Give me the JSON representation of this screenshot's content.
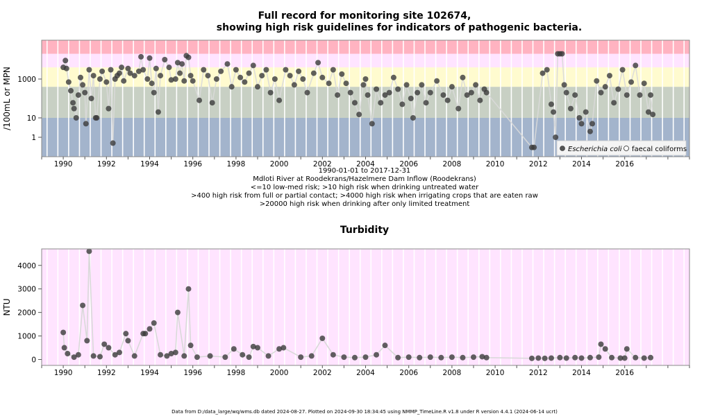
{
  "chart_data": [
    {
      "type": "scatter",
      "title_line1": "Full record for monitoring site 102674,",
      "title_line2": "showing high risk guidelines for indicators of pathogenic bacteria.",
      "ylabel": "/100mL or MPN",
      "yscale": "log",
      "ylim": [
        0.1,
        100000
      ],
      "yticks": [
        {
          "value": 1,
          "label": "1"
        },
        {
          "value": 10,
          "label": "10"
        },
        {
          "value": 1000,
          "label": "1000"
        }
      ],
      "xlim": [
        1989.0,
        2019.0
      ],
      "xtick_years": [
        1990,
        1992,
        1994,
        1996,
        1998,
        2000,
        2002,
        2004,
        2006,
        2008,
        2010,
        2012,
        2014,
        2016
      ],
      "date_range": "1990-01-01 to 2017-12-31",
      "site_name": "Mdloti River at Roodekrans/Hazelmere Dam Inflow (Roodekrans)",
      "risk_notes": [
        "<=10 low-med risk; >10 high risk when drinking untreated water",
        ">400 high risk from full or partial contact; >4000 high risk when irrigating crops that are eaten raw",
        ">20000 high risk when drinking after only limited treatment"
      ],
      "risk_bands": [
        {
          "from": 0.1,
          "to": 10,
          "color": "#a3b4cc"
        },
        {
          "from": 10,
          "to": 400,
          "color": "#c8d0c4"
        },
        {
          "from": 400,
          "to": 4000,
          "color": "#fffbcf"
        },
        {
          "from": 4000,
          "to": 20000,
          "color": "#ffe4ff"
        },
        {
          "from": 20000,
          "to": 100000,
          "color": "#ffb3c1"
        }
      ],
      "legend": {
        "position": "bottom-right",
        "entries": [
          "Escherichia coli",
          "faecal coliforms"
        ]
      },
      "series": [
        {
          "name": "Escherichia coli",
          "color": "#3b3b3b",
          "points": [
            [
              1990.0,
              4000
            ],
            [
              1990.1,
              9000
            ],
            [
              1990.15,
              3500
            ],
            [
              1990.25,
              700
            ],
            [
              1990.35,
              250
            ],
            [
              1990.45,
              60
            ],
            [
              1990.5,
              30
            ],
            [
              1990.6,
              10
            ],
            [
              1990.7,
              150
            ],
            [
              1990.8,
              1200
            ],
            [
              1990.9,
              500
            ],
            [
              1991.0,
              200
            ],
            [
              1991.05,
              5
            ],
            [
              1991.2,
              3000
            ],
            [
              1991.3,
              100
            ],
            [
              1991.4,
              1500
            ],
            [
              1991.5,
              10
            ],
            [
              1991.55,
              10
            ],
            [
              1991.7,
              1000
            ],
            [
              1991.8,
              2500
            ],
            [
              1992.0,
              700
            ],
            [
              1992.1,
              30
            ],
            [
              1992.2,
              3000
            ],
            [
              1992.3,
              0.5
            ],
            [
              1992.4,
              1000
            ],
            [
              1992.5,
              1500
            ],
            [
              1992.6,
              2000
            ],
            [
              1992.7,
              4000
            ],
            [
              1992.8,
              800
            ],
            [
              1993.0,
              3500
            ],
            [
              1993.1,
              2000
            ],
            [
              1993.3,
              1500
            ],
            [
              1993.5,
              2500
            ],
            [
              1993.6,
              14000
            ],
            [
              1993.7,
              3000
            ],
            [
              1993.9,
              1000
            ],
            [
              1994.0,
              12000
            ],
            [
              1994.1,
              600
            ],
            [
              1994.2,
              200
            ],
            [
              1994.3,
              3500
            ],
            [
              1994.4,
              20
            ],
            [
              1994.5,
              1500
            ],
            [
              1994.7,
              10000
            ],
            [
              1994.9,
              4000
            ],
            [
              1995.0,
              900
            ],
            [
              1995.2,
              1000
            ],
            [
              1995.3,
              7000
            ],
            [
              1995.4,
              2000
            ],
            [
              1995.5,
              6000
            ],
            [
              1995.6,
              800
            ],
            [
              1995.7,
              16000
            ],
            [
              1995.8,
              13000
            ],
            [
              1995.9,
              1500
            ],
            [
              1996.0,
              800
            ],
            [
              1996.3,
              80
            ],
            [
              1996.5,
              3000
            ],
            [
              1996.7,
              1500
            ],
            [
              1996.9,
              60
            ],
            [
              1997.1,
              1000
            ],
            [
              1997.3,
              2500
            ],
            [
              1997.6,
              6000
            ],
            [
              1997.8,
              400
            ],
            [
              1998.0,
              3000
            ],
            [
              1998.2,
              1200
            ],
            [
              1998.4,
              700
            ],
            [
              1998.6,
              2000
            ],
            [
              1998.8,
              5000
            ],
            [
              1999.0,
              400
            ],
            [
              1999.2,
              1500
            ],
            [
              1999.4,
              3000
            ],
            [
              1999.6,
              200
            ],
            [
              1999.8,
              1000
            ],
            [
              2000.0,
              80
            ],
            [
              2000.3,
              3000
            ],
            [
              2000.5,
              1500
            ],
            [
              2000.7,
              500
            ],
            [
              2000.9,
              2500
            ],
            [
              2001.1,
              1000
            ],
            [
              2001.3,
              200
            ],
            [
              2001.6,
              2000
            ],
            [
              2001.8,
              7000
            ],
            [
              2002.0,
              1200
            ],
            [
              2002.3,
              600
            ],
            [
              2002.5,
              3000
            ],
            [
              2002.7,
              150
            ],
            [
              2002.9,
              1800
            ],
            [
              2003.1,
              600
            ],
            [
              2003.3,
              200
            ],
            [
              2003.5,
              60
            ],
            [
              2003.7,
              15
            ],
            [
              2003.9,
              500
            ],
            [
              2004.0,
              1000
            ],
            [
              2004.1,
              150
            ],
            [
              2004.3,
              5
            ],
            [
              2004.5,
              300
            ],
            [
              2004.7,
              60
            ],
            [
              2004.9,
              150
            ],
            [
              2005.1,
              200
            ],
            [
              2005.3,
              1200
            ],
            [
              2005.5,
              300
            ],
            [
              2005.7,
              50
            ],
            [
              2005.9,
              500
            ],
            [
              2006.1,
              100
            ],
            [
              2006.2,
              10
            ],
            [
              2006.4,
              200
            ],
            [
              2006.6,
              500
            ],
            [
              2006.8,
              60
            ],
            [
              2007.0,
              200
            ],
            [
              2007.3,
              800
            ],
            [
              2007.6,
              150
            ],
            [
              2007.8,
              80
            ],
            [
              2008.0,
              400
            ],
            [
              2008.3,
              30
            ],
            [
              2008.5,
              1200
            ],
            [
              2008.7,
              150
            ],
            [
              2008.9,
              200
            ],
            [
              2009.1,
              500
            ],
            [
              2009.3,
              80
            ],
            [
              2009.5,
              300
            ],
            [
              2009.6,
              200
            ],
            [
              2011.7,
              0.3
            ],
            [
              2011.8,
              0.3
            ],
            [
              2012.2,
              2000
            ],
            [
              2012.4,
              3000
            ],
            [
              2012.6,
              50
            ],
            [
              2012.7,
              20
            ],
            [
              2012.8,
              1
            ],
            [
              2012.9,
              20000
            ],
            [
              2013.0,
              20000
            ],
            [
              2013.1,
              20000
            ],
            [
              2013.2,
              500
            ],
            [
              2013.3,
              200
            ],
            [
              2013.5,
              30
            ],
            [
              2013.7,
              150
            ],
            [
              2013.9,
              10
            ],
            [
              2014.0,
              5
            ],
            [
              2014.2,
              20
            ],
            [
              2014.4,
              2
            ],
            [
              2014.5,
              5
            ],
            [
              2014.7,
              800
            ],
            [
              2014.9,
              200
            ],
            [
              2015.1,
              400
            ],
            [
              2015.3,
              1500
            ],
            [
              2015.5,
              60
            ],
            [
              2015.7,
              300
            ],
            [
              2015.9,
              3000
            ],
            [
              2016.1,
              150
            ],
            [
              2016.3,
              700
            ],
            [
              2016.5,
              5000
            ],
            [
              2016.7,
              150
            ],
            [
              2016.9,
              600
            ],
            [
              2017.1,
              20
            ],
            [
              2017.2,
              150
            ],
            [
              2017.3,
              15
            ]
          ]
        },
        {
          "name": "faecal coliforms",
          "color": "#3b3b3b",
          "points": []
        }
      ]
    },
    {
      "type": "scatter",
      "title": "Turbidity",
      "ylabel": "NTU",
      "ylim": [
        -250,
        4700
      ],
      "yticks": [
        0,
        1000,
        2000,
        3000,
        4000
      ],
      "xlim": [
        1989.0,
        2019.0
      ],
      "xtick_years": [
        1990,
        1992,
        1994,
        1996,
        1998,
        2000,
        2002,
        2004,
        2006,
        2008,
        2010,
        2012,
        2014,
        2016
      ],
      "series": [
        {
          "name": "Turbidity",
          "color": "#3b3b3b",
          "points": [
            [
              1990.0,
              1150
            ],
            [
              1990.05,
              500
            ],
            [
              1990.2,
              250
            ],
            [
              1990.5,
              100
            ],
            [
              1990.7,
              200
            ],
            [
              1990.9,
              2300
            ],
            [
              1991.1,
              800
            ],
            [
              1991.2,
              4600
            ],
            [
              1991.4,
              150
            ],
            [
              1991.7,
              120
            ],
            [
              1991.9,
              650
            ],
            [
              1992.1,
              500
            ],
            [
              1992.4,
              200
            ],
            [
              1992.6,
              300
            ],
            [
              1992.9,
              1100
            ],
            [
              1993.0,
              800
            ],
            [
              1993.3,
              150
            ],
            [
              1993.7,
              1100
            ],
            [
              1993.8,
              1100
            ],
            [
              1994.0,
              1300
            ],
            [
              1994.2,
              1550
            ],
            [
              1994.5,
              200
            ],
            [
              1994.8,
              150
            ],
            [
              1995.0,
              250
            ],
            [
              1995.2,
              300
            ],
            [
              1995.3,
              2000
            ],
            [
              1995.6,
              150
            ],
            [
              1995.8,
              3000
            ],
            [
              1995.9,
              600
            ],
            [
              1996.2,
              100
            ],
            [
              1996.8,
              150
            ],
            [
              1997.5,
              100
            ],
            [
              1997.9,
              450
            ],
            [
              1998.3,
              200
            ],
            [
              1998.6,
              100
            ],
            [
              1998.8,
              550
            ],
            [
              1999.0,
              500
            ],
            [
              1999.5,
              150
            ],
            [
              2000.0,
              450
            ],
            [
              2000.2,
              500
            ],
            [
              2001.0,
              100
            ],
            [
              2001.5,
              150
            ],
            [
              2002.0,
              900
            ],
            [
              2002.5,
              200
            ],
            [
              2003.0,
              100
            ],
            [
              2003.5,
              80
            ],
            [
              2004.0,
              100
            ],
            [
              2004.5,
              200
            ],
            [
              2004.9,
              600
            ],
            [
              2005.5,
              80
            ],
            [
              2006.0,
              100
            ],
            [
              2006.5,
              80
            ],
            [
              2007.0,
              100
            ],
            [
              2007.5,
              80
            ],
            [
              2008.0,
              100
            ],
            [
              2008.5,
              80
            ],
            [
              2009.0,
              100
            ],
            [
              2009.4,
              120
            ],
            [
              2009.6,
              80
            ],
            [
              2011.7,
              50
            ],
            [
              2012.0,
              60
            ],
            [
              2012.3,
              50
            ],
            [
              2012.6,
              60
            ],
            [
              2013.0,
              80
            ],
            [
              2013.3,
              60
            ],
            [
              2013.7,
              80
            ],
            [
              2014.0,
              60
            ],
            [
              2014.4,
              80
            ],
            [
              2014.8,
              100
            ],
            [
              2014.9,
              650
            ],
            [
              2015.1,
              450
            ],
            [
              2015.4,
              80
            ],
            [
              2015.8,
              60
            ],
            [
              2016.0,
              60
            ],
            [
              2016.1,
              450
            ],
            [
              2016.5,
              80
            ],
            [
              2016.9,
              60
            ],
            [
              2017.2,
              80
            ]
          ]
        }
      ]
    }
  ],
  "footer": "Data from D:/data_large/wq/wms.db dated 2024-08-27. Plotted on 2024-09-30 18:34:45 using NMMP_TimeLine.R v1.8 under R version 4.4.1 (2024-06-14 ucrt)"
}
